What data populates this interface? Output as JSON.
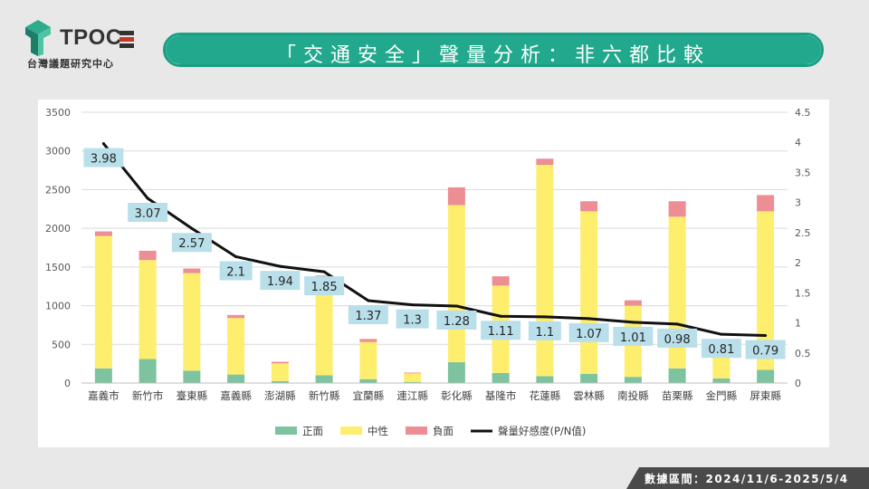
{
  "header": {
    "logo_text": "TPOC",
    "logo_subtitle": "台灣議題研究中心",
    "title": "「交通安全」聲量分析：非六都比較"
  },
  "footer": {
    "date_range": "數據區間：2024/11/6-2025/5/4"
  },
  "colors": {
    "positive": "#7dc39f",
    "neutral": "#fdee6e",
    "negative": "#ec8e94",
    "line": "#111111",
    "label_bg": "#b9dfea",
    "brand": "#22a98d"
  },
  "chart_data": {
    "type": "bar",
    "stacked": true,
    "categories": [
      "嘉義市",
      "新竹市",
      "臺東縣",
      "嘉義縣",
      "澎湖縣",
      "新竹縣",
      "宜蘭縣",
      "連江縣",
      "彰化縣",
      "基隆市",
      "花蓮縣",
      "雲林縣",
      "南投縣",
      "苗栗縣",
      "金門縣",
      "屏東縣"
    ],
    "series": [
      {
        "name": "正面",
        "values": [
          190,
          310,
          160,
          110,
          25,
          100,
          50,
          15,
          270,
          130,
          90,
          120,
          80,
          190,
          60,
          170
        ]
      },
      {
        "name": "中性",
        "values": [
          1710,
          1280,
          1260,
          730,
          230,
          1220,
          480,
          110,
          2030,
          1130,
          2730,
          2100,
          920,
          1960,
          440,
          2050
        ]
      },
      {
        "name": "負面",
        "values": [
          60,
          120,
          60,
          40,
          20,
          70,
          40,
          10,
          230,
          120,
          80,
          130,
          70,
          200,
          60,
          210
        ]
      }
    ],
    "line_series": {
      "name": "聲量好感度(P/N值)",
      "axis": "right",
      "values": [
        3.98,
        3.07,
        2.57,
        2.1,
        1.94,
        1.85,
        1.37,
        1.3,
        1.28,
        1.11,
        1.1,
        1.07,
        1.01,
        0.98,
        0.81,
        0.79
      ]
    },
    "y_left": {
      "min": 0,
      "max": 3500,
      "ticks": [
        0,
        500,
        1000,
        1500,
        2000,
        2500,
        3000,
        3500
      ]
    },
    "y_right": {
      "min": 0,
      "max": 4.5,
      "ticks": [
        "0",
        "0.5",
        "1",
        "1.5",
        "2",
        "2.5",
        "3",
        "3.5",
        "4",
        "4.5"
      ]
    },
    "legend": [
      "正面",
      "中性",
      "負面",
      "聲量好感度(P/N值)"
    ],
    "legend_position": "bottom",
    "grid": true
  }
}
